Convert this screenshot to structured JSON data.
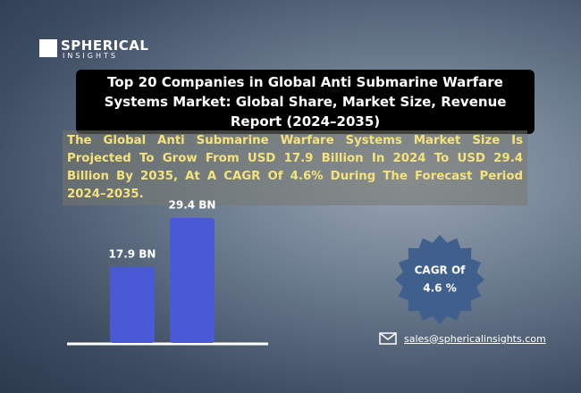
{
  "logo": {
    "name": "SPHERICAL",
    "tagline": "INSIGHTS"
  },
  "title": "Top 20 Companies in Global Anti Submarine Warfare Systems Market: Global Share, Market Size, Revenue Report (2024–2035)",
  "subtitle": "The Global Anti Submarine Warfare Systems Market Size Is Projected To Grow From USD 17.9 Billion In 2024 To USD 29.4 Billion By 2035, At A CAGR Of 4.6% During The Forecast Period 2024–2035.",
  "chart_data": {
    "type": "bar",
    "categories": [
      null,
      null
    ],
    "values": [
      17.9,
      29.4
    ],
    "value_labels": [
      "17.9 BN",
      "29.4 BN"
    ],
    "color": "#4a5ad4"
  },
  "badge": {
    "line1": "CAGR Of",
    "line2": "4.6 %"
  },
  "contact": {
    "email": "sales@sphericalinsights.com"
  }
}
